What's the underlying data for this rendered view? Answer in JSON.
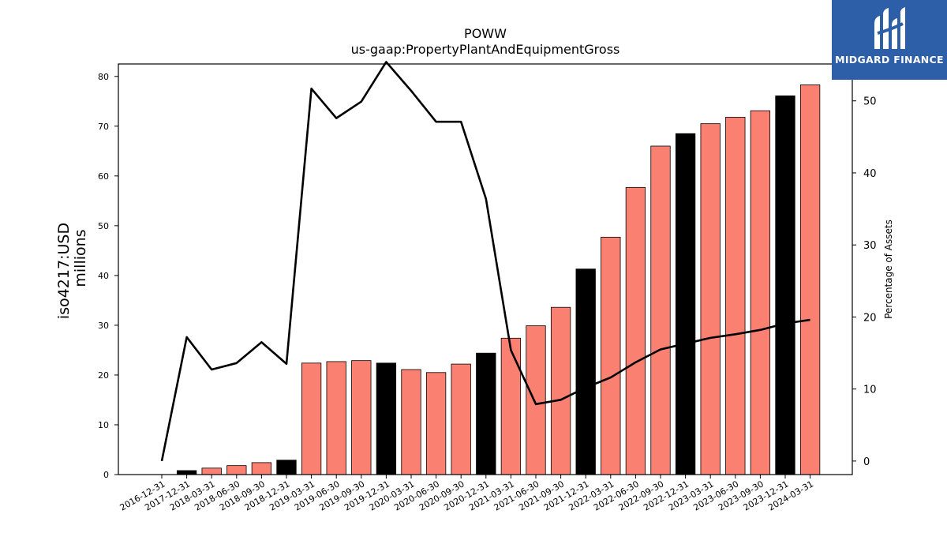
{
  "chart_data": {
    "type": "bar",
    "title": "POWW",
    "subtitle": "us-gaap:PropertyPlantAndEquipmentGross",
    "ylabel": "iso4217:USD",
    "ylabel_unit": "millions",
    "y2label": "Percentage of Assets",
    "ylim": [
      0,
      82.5
    ],
    "y2lim": [
      -1,
      56
    ],
    "yticks": [
      0,
      10,
      20,
      30,
      40,
      50,
      60,
      70,
      80
    ],
    "y2ticks": [
      0,
      10,
      20,
      30,
      40,
      50
    ],
    "grid": false,
    "legend": "none",
    "categories": [
      "2016-12-31",
      "2017-12-31",
      "2018-03-31",
      "2018-06-30",
      "2018-09-30",
      "2018-12-31",
      "2019-03-31",
      "2019-06-30",
      "2019-09-30",
      "2019-12-31",
      "2020-03-31",
      "2020-06-30",
      "2020-09-30",
      "2020-12-31",
      "2021-03-31",
      "2021-06-30",
      "2021-09-30",
      "2021-12-31",
      "2022-03-31",
      "2022-06-30",
      "2022-09-30",
      "2022-12-31",
      "2023-03-31",
      "2023-06-30",
      "2023-09-30",
      "2023-12-31",
      "2024-03-31"
    ],
    "values": [
      0,
      0.8,
      1.3,
      1.8,
      2.4,
      2.9,
      22.4,
      22.7,
      22.9,
      22.4,
      21.1,
      20.5,
      22.2,
      24.4,
      27.4,
      29.9,
      33.6,
      41.3,
      47.7,
      57.7,
      66.0,
      68.5,
      70.5,
      71.8,
      73.1,
      76.1,
      78.3
    ],
    "bar_colors": [
      "#fa8072",
      "#000000",
      "#fa8072",
      "#fa8072",
      "#fa8072",
      "#000000",
      "#fa8072",
      "#fa8072",
      "#fa8072",
      "#000000",
      "#fa8072",
      "#fa8072",
      "#fa8072",
      "#000000",
      "#fa8072",
      "#fa8072",
      "#fa8072",
      "#000000",
      "#fa8072",
      "#fa8072",
      "#fa8072",
      "#000000",
      "#fa8072",
      "#fa8072",
      "#fa8072",
      "#000000",
      "#fa8072"
    ],
    "line_values": [
      0,
      17.2,
      12.7,
      13.6,
      16.5,
      13.5,
      51.7,
      47.6,
      49.9,
      55.4,
      51.4,
      47.1,
      47.1,
      36.4,
      15.4,
      7.9,
      8.5,
      10.2,
      11.6,
      13.7,
      15.5,
      16.3,
      17.1,
      17.6,
      18.2,
      19.1,
      19.6
    ],
    "line_color": "#000000"
  },
  "logo": {
    "text": "MIDGARD FINANCE",
    "color": "#2d5fa8"
  }
}
